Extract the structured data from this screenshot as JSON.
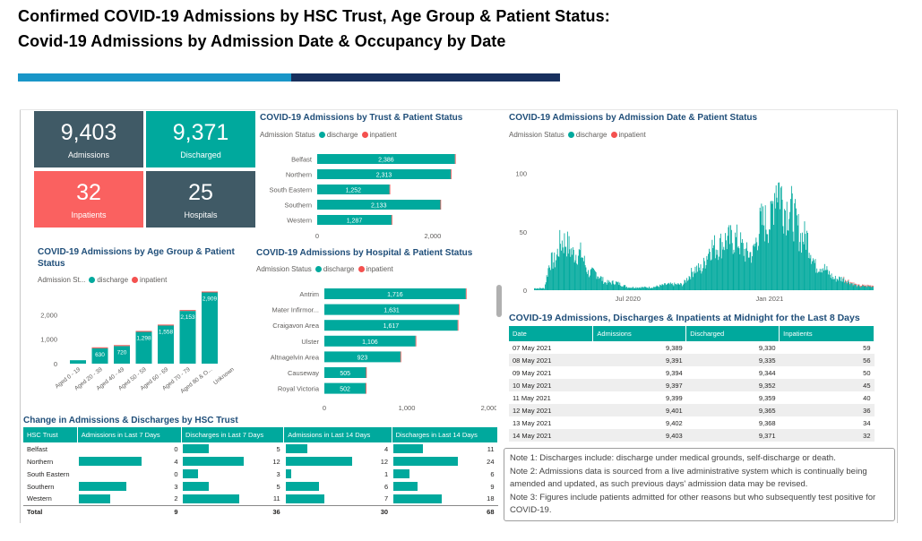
{
  "page": {
    "title_line1": "Confirmed  COVID-19  Admissions  by  HSC  Trust,  Age  Group  &  Patient  Status:",
    "title_line2": "Covid-19  Admissions  by  Admission  Date  &  Occupancy  by  Date"
  },
  "colors": {
    "discharge": "#00a99d",
    "inpatient": "#f4514f",
    "card_dark": "#405a66",
    "card_teal": "#00a99d",
    "card_red": "#fa6160",
    "accent_light": "#1996c8",
    "accent_dark": "#18305e"
  },
  "cards": [
    {
      "value": "9,403",
      "label": "Admissions"
    },
    {
      "value": "9,371",
      "label": "Discharged"
    },
    {
      "value": "32",
      "label": "Inpatients"
    },
    {
      "value": "25",
      "label": "Hospitals"
    }
  ],
  "legend": {
    "prefix": "Admission Status",
    "prefix_short": "Admission St...",
    "discharge": "discharge",
    "inpatient": "inpatient"
  },
  "chart_data": [
    {
      "type": "bar",
      "orientation": "horizontal",
      "title": "COVID-19 Admissions by Trust & Patient Status",
      "categories": [
        "Belfast",
        "Northern",
        "South Eastern",
        "Southern",
        "Western"
      ],
      "series": [
        {
          "name": "discharge",
          "values": [
            2386,
            2313,
            1252,
            2133,
            1287
          ]
        },
        {
          "name": "inpatient",
          "values": [
            11,
            12,
            0,
            6,
            3
          ]
        }
      ],
      "data_labels": [
        "2,386",
        "2,313",
        "1,252",
        "2,133",
        "1,287"
      ],
      "xlim": [
        0,
        2700
      ],
      "x_ticks": [
        "0",
        "2,000"
      ]
    },
    {
      "type": "bar",
      "orientation": "vertical",
      "title": "COVID-19 Admissions by Age Group & Patient Status",
      "categories": [
        "Aged 0 - 19",
        "Aged 20 - 39",
        "Aged 40 - 49",
        "Aged 50 - 59",
        "Aged 60 - 69",
        "Aged 70 - 79",
        "Aged 80 & O...",
        "Unknown"
      ],
      "series": [
        {
          "name": "discharge",
          "values": [
            140,
            630,
            720,
            1298,
            1558,
            2153,
            2909,
            0
          ]
        },
        {
          "name": "inpatient",
          "values": [
            0,
            1,
            2,
            4,
            6,
            8,
            11,
            0
          ]
        }
      ],
      "data_labels": [
        "",
        "630",
        "720",
        "1,298",
        "1,558",
        "2,153",
        "2,909",
        ""
      ],
      "ylim": [
        0,
        3000
      ],
      "y_ticks": [
        "0",
        "1,000",
        "2,000"
      ]
    },
    {
      "type": "bar",
      "orientation": "horizontal",
      "title": "COVID-19 Admissions by Hospital & Patient Status",
      "categories": [
        "Antrim",
        "Mater Infirmor...",
        "Craigavon Area",
        "Ulster",
        "Altnagelvin Area",
        "Causeway",
        "Royal Victoria"
      ],
      "series": [
        {
          "name": "discharge",
          "values": [
            1716,
            1631,
            1617,
            1106,
            923,
            505,
            502
          ]
        },
        {
          "name": "inpatient",
          "values": [
            5,
            4,
            4,
            3,
            2,
            1,
            2
          ]
        }
      ],
      "data_labels": [
        "1,716",
        "1,631",
        "1,617",
        "1,106",
        "923",
        "505",
        "502"
      ],
      "xlim": [
        0,
        2000
      ],
      "x_ticks": [
        "0",
        "1,000",
        "2,000"
      ]
    },
    {
      "type": "bar",
      "title": "COVID-19 Admissions by Admission Date & Patient Status",
      "x_ticks": [
        "Jul 2020",
        "Jan 2021"
      ],
      "y_ticks": [
        "0",
        "50",
        "100"
      ],
      "ylim": [
        0,
        115
      ],
      "xlim": [
        "2020-03-01",
        "2021-05-15"
      ],
      "segments": [
        {
          "start": "2020-03-01",
          "end": "2020-03-14",
          "level": 2
        },
        {
          "start": "2020-03-21",
          "end": "2020-03-28",
          "level": 30
        },
        {
          "start": "2020-04-04",
          "end": "2020-04-11",
          "level": 50
        },
        {
          "start": "2020-04-20",
          "end": "2020-05-01",
          "level": 38
        },
        {
          "start": "2020-05-10",
          "end": "2020-05-20",
          "level": 18
        },
        {
          "start": "2020-06-01",
          "end": "2020-06-15",
          "level": 8
        },
        {
          "start": "2020-07-01",
          "end": "2020-08-01",
          "level": 3
        },
        {
          "start": "2020-08-20",
          "end": "2020-09-10",
          "level": 6
        },
        {
          "start": "2020-09-25",
          "end": "2020-10-05",
          "level": 22
        },
        {
          "start": "2020-10-15",
          "end": "2020-10-25",
          "level": 45
        },
        {
          "start": "2020-11-05",
          "end": "2020-11-20",
          "level": 52
        },
        {
          "start": "2020-12-01",
          "end": "2020-12-10",
          "level": 38
        },
        {
          "start": "2020-12-20",
          "end": "2021-01-02",
          "level": 70
        },
        {
          "start": "2021-01-08",
          "end": "2021-01-12",
          "level": 110
        },
        {
          "start": "2021-01-20",
          "end": "2021-01-28",
          "level": 85
        },
        {
          "start": "2021-02-10",
          "end": "2021-02-18",
          "level": 55
        },
        {
          "start": "2021-03-01",
          "end": "2021-03-10",
          "level": 25
        },
        {
          "start": "2021-03-25",
          "end": "2021-04-05",
          "level": 12
        },
        {
          "start": "2021-04-25",
          "end": "2021-05-14",
          "level": 4
        }
      ]
    }
  ],
  "change_table": {
    "title": "Change in Admissions & Discharges by HSC Trust",
    "headers": [
      "HSC Trust",
      "Admissions in Last 7 Days",
      "Discharges in Last 7 Days",
      "Admissions in Last 14 Days",
      "Discharges in Last 14 Days"
    ],
    "rows": [
      {
        "trust": "Belfast",
        "v": [
          0,
          5,
          4,
          11
        ]
      },
      {
        "trust": "Northern",
        "v": [
          4,
          12,
          12,
          24
        ]
      },
      {
        "trust": "South Eastern",
        "v": [
          0,
          3,
          1,
          6
        ]
      },
      {
        "trust": "Southern",
        "v": [
          3,
          5,
          6,
          9
        ]
      },
      {
        "trust": "Western",
        "v": [
          2,
          11,
          7,
          18
        ]
      }
    ],
    "total_label": "Total",
    "totals": [
      9,
      36,
      30,
      68
    ]
  },
  "daily_table": {
    "title": "COVID-19 Admissions, Discharges & Inpatients at Midnight for the Last 8 Days",
    "headers": [
      "Date",
      "Admissions",
      "Discharged",
      "Inpatients"
    ],
    "rows": [
      [
        "07 May 2021",
        "9,389",
        "9,330",
        "59"
      ],
      [
        "08 May 2021",
        "9,391",
        "9,335",
        "56"
      ],
      [
        "09 May 2021",
        "9,394",
        "9,344",
        "50"
      ],
      [
        "10 May 2021",
        "9,397",
        "9,352",
        "45"
      ],
      [
        "11 May 2021",
        "9,399",
        "9,359",
        "40"
      ],
      [
        "12 May 2021",
        "9,401",
        "9,365",
        "36"
      ],
      [
        "13 May 2021",
        "9,402",
        "9,368",
        "34"
      ],
      [
        "14 May 2021",
        "9,403",
        "9,371",
        "32"
      ]
    ]
  },
  "notes": [
    "Note 1: Discharges include: discharge under medical grounds, self-discharge or death.",
    "Note 2: Admissions data is sourced from a live administrative system which is continually being amended and updated, as such previous days' admission data may be revised.",
    "Note 3: Figures include patients admitted for other reasons but who subsequently test positive for COVID-19."
  ]
}
